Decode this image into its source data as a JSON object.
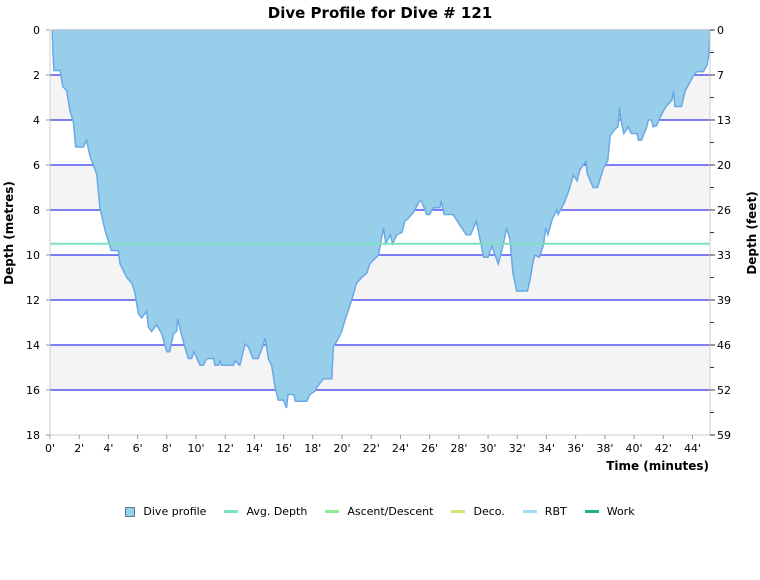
{
  "chart_data": {
    "type": "area",
    "title": "Dive Profile for Dive # 121",
    "xlabel": "Time (minutes)",
    "ylabel": "Depth (metres)",
    "ylabel_right": "Depth (feet)",
    "xlim": [
      0,
      45.2
    ],
    "ylim": [
      0,
      18
    ],
    "y_inverted": true,
    "grid": true,
    "legend_placement": "bottom",
    "x_ticks": [
      "0'",
      "2'",
      "4'",
      "6'",
      "8'",
      "10'",
      "12'",
      "14'",
      "16'",
      "18'",
      "20'",
      "22'",
      "24'",
      "26'",
      "28'",
      "30'",
      "32'",
      "34'",
      "36'",
      "38'",
      "40'",
      "42'",
      "44'"
    ],
    "y_ticks": [
      "0",
      "2",
      "4",
      "6",
      "8",
      "10",
      "12",
      "14",
      "16",
      "18"
    ],
    "y_ticks_right": [
      "0",
      "7",
      "13",
      "20",
      "26",
      "33",
      "39",
      "46",
      "52",
      "59"
    ],
    "avg_depth": 9.5,
    "colors": {
      "profile_fill": "#97cfea",
      "profile_line": "#6aa8e6",
      "avg": "#7de0c0",
      "grid": "#0000ee",
      "band": "#f4f4f4"
    },
    "legend": [
      {
        "label": "Dive profile",
        "color": "#97cfea",
        "kind": "square"
      },
      {
        "label": "Avg. Depth",
        "color": "#7de0c0",
        "kind": "line"
      },
      {
        "label": "Ascent/Descent",
        "color": "#90ee90",
        "kind": "line"
      },
      {
        "label": "Deco.",
        "color": "#d8e070",
        "kind": "line"
      },
      {
        "label": "RBT",
        "color": "#a0dcf4",
        "kind": "line"
      },
      {
        "label": "Work",
        "color": "#20b090",
        "kind": "line"
      }
    ],
    "series": [
      {
        "name": "Dive profile",
        "points": [
          [
            0.15,
            0
          ],
          [
            0.2,
            0.9
          ],
          [
            0.27,
            1.8
          ],
          [
            0.7,
            1.8
          ],
          [
            0.87,
            2.5
          ],
          [
            1.14,
            2.7
          ],
          [
            1.37,
            3.6
          ],
          [
            1.6,
            4.1
          ],
          [
            1.76,
            5.2
          ],
          [
            2.28,
            5.2
          ],
          [
            2.5,
            4.9
          ],
          [
            2.74,
            5.6
          ],
          [
            3.2,
            6.4
          ],
          [
            3.42,
            7.9
          ],
          [
            3.77,
            8.9
          ],
          [
            4.2,
            9.8
          ],
          [
            4.68,
            9.8
          ],
          [
            4.8,
            10.4
          ],
          [
            5.25,
            11.0
          ],
          [
            5.6,
            11.25
          ],
          [
            5.82,
            11.7
          ],
          [
            6.05,
            12.6
          ],
          [
            6.28,
            12.8
          ],
          [
            6.62,
            12.5
          ],
          [
            6.73,
            13.2
          ],
          [
            6.96,
            13.4
          ],
          [
            7.3,
            13.1
          ],
          [
            7.65,
            13.5
          ],
          [
            8.0,
            14.3
          ],
          [
            8.2,
            14.3
          ],
          [
            8.45,
            13.5
          ],
          [
            8.67,
            13.4
          ],
          [
            8.74,
            12.85
          ],
          [
            9.13,
            13.85
          ],
          [
            9.47,
            14.6
          ],
          [
            9.7,
            14.6
          ],
          [
            9.86,
            14.3
          ],
          [
            10.27,
            14.9
          ],
          [
            10.5,
            14.9
          ],
          [
            10.73,
            14.6
          ],
          [
            11.2,
            14.6
          ],
          [
            11.3,
            14.9
          ],
          [
            11.55,
            14.9
          ],
          [
            11.64,
            14.7
          ],
          [
            11.76,
            14.9
          ],
          [
            12.55,
            14.9
          ],
          [
            12.67,
            14.7
          ],
          [
            13.0,
            14.9
          ],
          [
            13.36,
            13.95
          ],
          [
            13.6,
            14.1
          ],
          [
            13.9,
            14.6
          ],
          [
            14.25,
            14.6
          ],
          [
            14.5,
            14.2
          ],
          [
            14.73,
            13.7
          ],
          [
            14.96,
            14.6
          ],
          [
            15.2,
            14.96
          ],
          [
            15.4,
            15.85
          ],
          [
            15.64,
            16.45
          ],
          [
            15.98,
            16.45
          ],
          [
            16.2,
            16.8
          ],
          [
            16.3,
            16.2
          ],
          [
            16.7,
            16.2
          ],
          [
            16.8,
            16.5
          ],
          [
            17.58,
            16.5
          ],
          [
            17.8,
            16.2
          ],
          [
            18.15,
            16.05
          ],
          [
            18.26,
            15.9
          ],
          [
            18.72,
            15.5
          ],
          [
            19.3,
            15.5
          ],
          [
            19.4,
            14.1
          ],
          [
            19.63,
            13.85
          ],
          [
            19.98,
            13.4
          ],
          [
            20.2,
            12.9
          ],
          [
            20.66,
            12.0
          ],
          [
            21.0,
            11.25
          ],
          [
            21.35,
            11.0
          ],
          [
            21.7,
            10.8
          ],
          [
            21.9,
            10.4
          ],
          [
            22.26,
            10.15
          ],
          [
            22.5,
            10.0
          ],
          [
            22.83,
            8.8
          ],
          [
            23.0,
            9.5
          ],
          [
            23.3,
            9.1
          ],
          [
            23.47,
            9.5
          ],
          [
            23.75,
            9.1
          ],
          [
            24.1,
            9.0
          ],
          [
            24.3,
            8.5
          ],
          [
            24.5,
            8.4
          ],
          [
            24.9,
            8.1
          ],
          [
            25.3,
            7.6
          ],
          [
            25.45,
            7.6
          ],
          [
            25.8,
            8.2
          ],
          [
            26.0,
            8.2
          ],
          [
            26.25,
            7.9
          ],
          [
            26.7,
            7.9
          ],
          [
            26.8,
            7.6
          ],
          [
            27.0,
            8.2
          ],
          [
            27.6,
            8.2
          ],
          [
            28.1,
            8.7
          ],
          [
            28.5,
            9.1
          ],
          [
            28.8,
            9.1
          ],
          [
            29.2,
            8.5
          ],
          [
            29.45,
            9.3
          ],
          [
            29.7,
            10.1
          ],
          [
            30.0,
            10.1
          ],
          [
            30.25,
            9.6
          ],
          [
            30.7,
            10.4
          ],
          [
            31.05,
            9.5
          ],
          [
            31.27,
            8.8
          ],
          [
            31.5,
            9.3
          ],
          [
            31.7,
            10.8
          ],
          [
            31.96,
            11.6
          ],
          [
            32.7,
            11.6
          ],
          [
            32.87,
            11.1
          ],
          [
            33.06,
            10.4
          ],
          [
            33.2,
            10.0
          ],
          [
            33.5,
            10.1
          ],
          [
            33.8,
            9.55
          ],
          [
            33.95,
            8.8
          ],
          [
            34.1,
            9.1
          ],
          [
            34.4,
            8.4
          ],
          [
            34.7,
            8.0
          ],
          [
            34.8,
            8.2
          ],
          [
            35.2,
            7.7
          ],
          [
            35.5,
            7.2
          ],
          [
            35.85,
            6.45
          ],
          [
            36.1,
            6.7
          ],
          [
            36.3,
            6.2
          ],
          [
            36.7,
            5.85
          ],
          [
            36.8,
            6.4
          ],
          [
            37.2,
            7.0
          ],
          [
            37.5,
            7.0
          ],
          [
            37.9,
            6.15
          ],
          [
            38.2,
            5.8
          ],
          [
            38.36,
            4.7
          ],
          [
            38.7,
            4.4
          ],
          [
            38.9,
            4.3
          ],
          [
            39.0,
            3.45
          ],
          [
            39.1,
            4.0
          ],
          [
            39.3,
            4.6
          ],
          [
            39.6,
            4.3
          ],
          [
            39.8,
            4.6
          ],
          [
            40.2,
            4.6
          ],
          [
            40.3,
            4.9
          ],
          [
            40.5,
            4.9
          ],
          [
            40.87,
            4.3
          ],
          [
            40.98,
            4.0
          ],
          [
            41.2,
            4.0
          ],
          [
            41.3,
            4.3
          ],
          [
            41.55,
            4.25
          ],
          [
            41.7,
            4.0
          ],
          [
            42.0,
            3.6
          ],
          [
            42.2,
            3.4
          ],
          [
            42.6,
            3.1
          ],
          [
            42.7,
            2.7
          ],
          [
            42.8,
            3.4
          ],
          [
            43.25,
            3.4
          ],
          [
            43.5,
            2.7
          ],
          [
            43.8,
            2.35
          ],
          [
            44.0,
            2.1
          ],
          [
            44.3,
            1.85
          ],
          [
            44.75,
            1.85
          ],
          [
            45.0,
            1.55
          ],
          [
            45.1,
            1.2
          ],
          [
            45.2,
            0
          ]
        ]
      }
    ]
  }
}
